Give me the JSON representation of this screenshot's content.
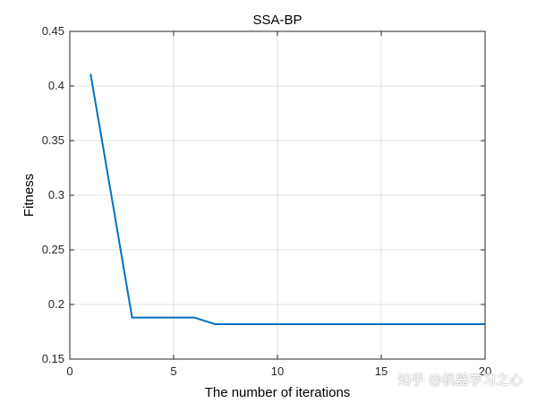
{
  "chart_data": {
    "type": "line",
    "title": "SSA-BP",
    "xlabel": "The number of iterations",
    "ylabel": "Fitness",
    "xlim": [
      0,
      20
    ],
    "ylim": [
      0.15,
      0.45
    ],
    "xticks": [
      0,
      5,
      10,
      15,
      20
    ],
    "yticks": [
      0.15,
      0.2,
      0.25,
      0.3,
      0.35,
      0.4,
      0.45
    ],
    "xtick_labels": [
      "0",
      "5",
      "10",
      "15",
      "20"
    ],
    "ytick_labels": [
      "0.15",
      "0.2",
      "0.25",
      "0.3",
      "0.35",
      "0.4",
      "0.45"
    ],
    "grid": true,
    "series": [
      {
        "color": "#0072BD",
        "x": [
          1,
          2,
          3,
          4,
          5,
          6,
          7,
          8,
          9,
          10,
          11,
          12,
          13,
          14,
          15,
          16,
          17,
          18,
          19,
          20
        ],
        "y": [
          0.411,
          0.3,
          0.188,
          0.188,
          0.188,
          0.188,
          0.182,
          0.182,
          0.182,
          0.182,
          0.182,
          0.182,
          0.182,
          0.182,
          0.182,
          0.182,
          0.182,
          0.182,
          0.182,
          0.182
        ]
      }
    ]
  },
  "watermark": "知乎 @机器学习之心"
}
